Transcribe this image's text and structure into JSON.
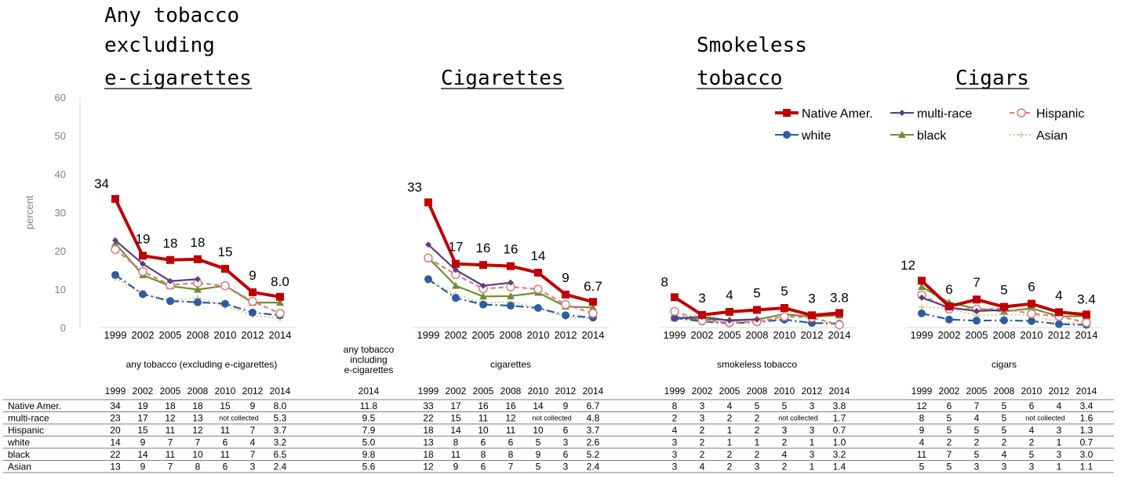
{
  "chart_data": {
    "type": "line",
    "ylabel": "percent",
    "ylim": [
      0,
      60
    ],
    "yticks": [
      0,
      10,
      20,
      30,
      40,
      50,
      60
    ],
    "years": [
      "1999",
      "2002",
      "2005",
      "2008",
      "2010",
      "2012",
      "2014"
    ],
    "series_styles": [
      {
        "name": "Native Amer.",
        "color": "#c00000",
        "marker": "square",
        "dash": ""
      },
      {
        "name": "multi-race",
        "color": "#5b3f7f",
        "marker": "diamond",
        "dash": ""
      },
      {
        "name": "Hispanic",
        "color": "#e07b7b",
        "marker": "circle-open",
        "dash": "6,4"
      },
      {
        "name": "white",
        "color": "#2e5c9e",
        "marker": "circle",
        "dash": "10,4,2,4"
      },
      {
        "name": "black",
        "color": "#6f8f2e",
        "marker": "triangle",
        "dash": ""
      },
      {
        "name": "Asian",
        "color": "#c9d19a",
        "marker": "plus",
        "dash": "2,3"
      }
    ],
    "panels": [
      {
        "title_lines": [
          "Any tobacco",
          "excluding",
          "e-cigarettes"
        ],
        "caption": "any tobacco (excluding e-cigarettes)",
        "labels": [
          "34",
          "19",
          "18",
          "18",
          "15",
          "9",
          "8.0"
        ],
        "series": [
          {
            "name": "Native Amer.",
            "values": [
              33.5,
              18.7,
              17.6,
              17.8,
              15.3,
              9.2,
              8.0
            ]
          },
          {
            "name": "multi-race",
            "values": [
              22.7,
              16.6,
              12.1,
              12.6,
              null,
              null,
              null
            ]
          },
          {
            "name": "Hispanic",
            "values": [
              20.3,
              14.6,
              11.1,
              11.6,
              10.9,
              6.8,
              3.7
            ]
          },
          {
            "name": "white",
            "values": [
              13.7,
              8.7,
              6.9,
              6.6,
              6.2,
              3.9,
              3.2
            ]
          },
          {
            "name": "black",
            "values": [
              21.9,
              13.7,
              10.8,
              9.9,
              10.9,
              6.5,
              6.5
            ]
          },
          {
            "name": "Asian",
            "values": [
              12.9,
              8.7,
              7.1,
              7.7,
              5.7,
              3.1,
              2.4
            ]
          }
        ]
      },
      {
        "title_lines": [
          "",
          "",
          "Cigarettes"
        ],
        "caption": "cigarettes",
        "labels": [
          "33",
          "17",
          "16",
          "16",
          "14",
          "9",
          "6.7"
        ],
        "series": [
          {
            "name": "Native Amer.",
            "values": [
              32.6,
              16.6,
              16.3,
              16.0,
              14.3,
              8.6,
              6.7
            ]
          },
          {
            "name": "multi-race",
            "values": [
              21.6,
              15.0,
              10.9,
              11.7,
              null,
              null,
              null
            ]
          },
          {
            "name": "Hispanic",
            "values": [
              18.1,
              13.8,
              10.1,
              10.6,
              10.0,
              6.0,
              3.7
            ]
          },
          {
            "name": "white",
            "values": [
              12.6,
              7.7,
              6.0,
              5.7,
              5.1,
              3.2,
              2.6
            ]
          },
          {
            "name": "black",
            "values": [
              18.2,
              10.9,
              8.1,
              8.2,
              9.1,
              5.5,
              5.2
            ]
          },
          {
            "name": "Asian",
            "values": [
              12.1,
              8.6,
              6.4,
              6.7,
              5.1,
              2.7,
              2.4
            ]
          }
        ]
      },
      {
        "title_lines": [
          "",
          "Smokeless",
          "tobacco"
        ],
        "caption": "smokeless tobacco",
        "labels": [
          "8",
          "3",
          "4",
          "5",
          "5",
          "3",
          "3.8"
        ],
        "series": [
          {
            "name": "Native Amer.",
            "values": [
              7.9,
              3.3,
              4.1,
              4.6,
              5.1,
              3.2,
              3.8
            ]
          },
          {
            "name": "multi-race",
            "values": [
              2.4,
              2.8,
              1.8,
              2.1,
              null,
              null,
              null
            ]
          },
          {
            "name": "Hispanic",
            "values": [
              4.2,
              1.8,
              1.3,
              1.5,
              2.9,
              2.6,
              0.7
            ]
          },
          {
            "name": "white",
            "values": [
              2.5,
              1.6,
              1.1,
              1.4,
              2.1,
              1.2,
              1.0
            ]
          },
          {
            "name": "black",
            "values": [
              2.6,
              2.1,
              2.0,
              2.1,
              3.5,
              2.8,
              3.2
            ]
          },
          {
            "name": "Asian",
            "values": [
              2.6,
              3.6,
              1.7,
              2.5,
              1.8,
              1.1,
              1.4
            ]
          }
        ]
      },
      {
        "title_lines": [
          "",
          "",
          "Cigars"
        ],
        "caption": "cigars",
        "labels": [
          "12",
          "6",
          "7",
          "5",
          "6",
          "4",
          "3.4"
        ],
        "series": [
          {
            "name": "Native Amer.",
            "values": [
              12.2,
              5.5,
              7.3,
              5.4,
              6.2,
              4.0,
              3.4
            ]
          },
          {
            "name": "multi-race",
            "values": [
              7.8,
              5.2,
              4.3,
              4.6,
              null,
              null,
              null
            ]
          },
          {
            "name": "Hispanic",
            "values": [
              8.5,
              4.8,
              4.8,
              4.9,
              3.6,
              2.9,
              1.3
            ]
          },
          {
            "name": "white",
            "values": [
              3.7,
              2.1,
              1.8,
              1.9,
              1.7,
              0.9,
              0.7
            ]
          },
          {
            "name": "black",
            "values": [
              10.6,
              6.5,
              4.9,
              4.2,
              5.0,
              2.9,
              3.0
            ]
          },
          {
            "name": "Asian",
            "values": [
              5.3,
              5.1,
              3.1,
              3.4,
              3.3,
              1.3,
              1.1
            ]
          }
        ]
      }
    ]
  },
  "extra_column": {
    "header": [
      "any tobacco",
      "including",
      "e-cigarettes"
    ],
    "year": "2014"
  },
  "table": {
    "not_collected": "not collected",
    "rows": [
      {
        "name": "Native Amer.",
        "any": [
          "34",
          "19",
          "18",
          "18",
          "15",
          "9",
          "8.0"
        ],
        "incl": "11.8",
        "cig": [
          "33",
          "17",
          "16",
          "16",
          "14",
          "9",
          "6.7"
        ],
        "smk": [
          "8",
          "3",
          "4",
          "5",
          "5",
          "3",
          "3.8"
        ],
        "cigar": [
          "12",
          "6",
          "7",
          "5",
          "6",
          "4",
          "3.4"
        ]
      },
      {
        "name": "multi-race",
        "any": [
          "23",
          "17",
          "12",
          "13",
          "NC",
          "",
          "5.3"
        ],
        "incl": "9.5",
        "cig": [
          "22",
          "15",
          "11",
          "12",
          "NC",
          "",
          "4.8"
        ],
        "smk": [
          "2",
          "3",
          "2",
          "2",
          "NC",
          "",
          "1.7"
        ],
        "cigar": [
          "8",
          "5",
          "4",
          "5",
          "NC",
          "",
          "1.6"
        ]
      },
      {
        "name": "Hispanic",
        "any": [
          "20",
          "15",
          "11",
          "12",
          "11",
          "7",
          "3.7"
        ],
        "incl": "7.9",
        "cig": [
          "18",
          "14",
          "10",
          "11",
          "10",
          "6",
          "3.7"
        ],
        "smk": [
          "4",
          "2",
          "1",
          "2",
          "3",
          "3",
          "0.7"
        ],
        "cigar": [
          "9",
          "5",
          "5",
          "5",
          "4",
          "3",
          "1.3"
        ]
      },
      {
        "name": "white",
        "any": [
          "14",
          "9",
          "7",
          "7",
          "6",
          "4",
          "3.2"
        ],
        "incl": "5.0",
        "cig": [
          "13",
          "8",
          "6",
          "6",
          "5",
          "3",
          "2.6"
        ],
        "smk": [
          "3",
          "2",
          "1",
          "1",
          "2",
          "1",
          "1.0"
        ],
        "cigar": [
          "4",
          "2",
          "2",
          "2",
          "2",
          "1",
          "0.7"
        ]
      },
      {
        "name": "black",
        "any": [
          "22",
          "14",
          "11",
          "10",
          "11",
          "7",
          "6.5"
        ],
        "incl": "9.8",
        "cig": [
          "18",
          "11",
          "8",
          "8",
          "9",
          "6",
          "5.2"
        ],
        "smk": [
          "3",
          "2",
          "2",
          "2",
          "4",
          "3",
          "3.2"
        ],
        "cigar": [
          "11",
          "7",
          "5",
          "4",
          "5",
          "3",
          "3.0"
        ]
      },
      {
        "name": "Asian",
        "any": [
          "13",
          "9",
          "7",
          "8",
          "6",
          "3",
          "2.4"
        ],
        "incl": "5.6",
        "cig": [
          "12",
          "9",
          "6",
          "7",
          "5",
          "3",
          "2.4"
        ],
        "smk": [
          "3",
          "4",
          "2",
          "3",
          "2",
          "1",
          "1.4"
        ],
        "cigar": [
          "5",
          "5",
          "3",
          "3",
          "3",
          "1",
          "1.1"
        ]
      }
    ]
  }
}
